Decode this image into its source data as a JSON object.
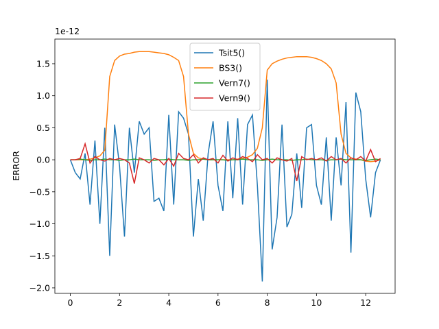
{
  "chart_data": {
    "type": "line",
    "ylabel": "ERROR",
    "offset_label": "1e-12",
    "legend": "upper center",
    "xlim": [
      -0.628,
      13.195
    ],
    "ylim": [
      -2.086,
      1.885
    ],
    "xticks": [
      0,
      2,
      4,
      6,
      8,
      10,
      12
    ],
    "yticks": [
      {
        "value": -2,
        "label": "−2.0"
      },
      {
        "value": -1.5,
        "label": "−1.5"
      },
      {
        "value": -1,
        "label": "−1.0"
      },
      {
        "value": -0.5,
        "label": "−0.5"
      },
      {
        "value": 0,
        "label": "0.0"
      },
      {
        "value": 0.5,
        "label": "0.5"
      },
      {
        "value": 1,
        "label": "1.0"
      },
      {
        "value": 1.5,
        "label": "1.5"
      }
    ],
    "x": [
      0,
      0.2,
      0.4,
      0.6,
      0.8,
      1.0,
      1.2,
      1.4,
      1.6,
      1.8,
      2.0,
      2.2,
      2.4,
      2.6,
      2.8,
      3.0,
      3.2,
      3.4,
      3.6,
      3.8,
      4.0,
      4.2,
      4.4,
      4.6,
      4.8,
      5.0,
      5.2,
      5.4,
      5.6,
      5.8,
      6.0,
      6.2,
      6.4,
      6.6,
      6.8,
      7.0,
      7.2,
      7.4,
      7.6,
      7.8,
      8.0,
      8.2,
      8.4,
      8.6,
      8.8,
      9.0,
      9.2,
      9.4,
      9.6,
      9.8,
      10.0,
      10.2,
      10.4,
      10.6,
      10.8,
      11.0,
      11.2,
      11.4,
      11.6,
      11.8,
      12.0,
      12.2,
      12.4,
      12.6
    ],
    "series": [
      {
        "name": "Tsit5()",
        "color": "#1f77b4",
        "values": [
          0,
          -0.2,
          -0.3,
          0.1,
          -0.7,
          0.3,
          -1.0,
          0.5,
          -1.5,
          0.55,
          -0.1,
          -1.2,
          0.5,
          -0.2,
          0.6,
          0.4,
          0.5,
          -0.65,
          -0.6,
          -0.8,
          0.7,
          -0.7,
          0.75,
          0.65,
          0.4,
          -1.2,
          -0.3,
          -0.95,
          0.1,
          0.6,
          -0.4,
          -0.8,
          0.6,
          -0.6,
          0.65,
          -0.7,
          0.55,
          0.7,
          -0.4,
          -1.9,
          1.25,
          -1.4,
          -0.9,
          0.55,
          -1.05,
          -0.85,
          0.1,
          -0.75,
          0.5,
          0.55,
          -0.4,
          -0.7,
          0.35,
          -0.95,
          0.35,
          -0.4,
          0.9,
          -1.45,
          1.05,
          0.75,
          -0.3,
          -0.9,
          -0.2,
          0
        ]
      },
      {
        "name": "BS3()",
        "color": "#ff7f0e",
        "values": [
          0,
          0,
          0,
          0,
          0.01,
          0.03,
          0.06,
          0.15,
          1.3,
          1.55,
          1.62,
          1.65,
          1.66,
          1.68,
          1.69,
          1.69,
          1.69,
          1.68,
          1.67,
          1.66,
          1.64,
          1.6,
          1.55,
          1.3,
          0.4,
          0.1,
          0.03,
          0.01,
          0,
          0,
          0,
          0,
          0,
          0,
          0.01,
          0.02,
          0.04,
          0.08,
          0.18,
          0.5,
          1.4,
          1.5,
          1.54,
          1.57,
          1.59,
          1.6,
          1.61,
          1.61,
          1.61,
          1.6,
          1.58,
          1.55,
          1.5,
          1.42,
          1.2,
          0.4,
          0.1,
          0.03,
          0.01,
          0,
          -0.02,
          -0.03,
          -0.02,
          0
        ]
      },
      {
        "name": "Vern7()",
        "color": "#2ca02c",
        "values": [
          0,
          0,
          0.01,
          0,
          -0.01,
          0,
          0,
          0.01,
          0,
          0,
          -0.01,
          0,
          0,
          0.01,
          0,
          0,
          0,
          -0.01,
          0,
          0,
          0.01,
          0,
          0,
          0,
          -0.01,
          0,
          0,
          0.01,
          0,
          0,
          0,
          0,
          -0.01,
          0,
          0,
          0.01,
          0,
          0,
          0,
          -0.01,
          0,
          0.01,
          0,
          0,
          0,
          -0.01,
          0,
          0,
          0.01,
          0,
          0,
          0,
          -0.01,
          0,
          0,
          0.01,
          0,
          0,
          0,
          0,
          -0.01,
          0,
          0.01,
          0
        ]
      },
      {
        "name": "Vern9()",
        "color": "#d62728",
        "values": [
          0,
          0,
          0.02,
          0.25,
          -0.05,
          0.05,
          0,
          -0.02,
          0.02,
          0,
          0.02,
          0,
          -0.05,
          -0.37,
          0.03,
          0,
          -0.05,
          0.02,
          0,
          -0.08,
          0.02,
          -0.1,
          0.1,
          0.02,
          0,
          0.08,
          -0.05,
          0.03,
          0,
          0.02,
          -0.05,
          0.07,
          -0.02,
          0.03,
          0,
          0.05,
          0.02,
          -0.03,
          0.08,
          0,
          0.02,
          -0.05,
          0.03,
          0,
          -0.02,
          0.02,
          -0.33,
          0.05,
          0,
          0.02,
          0,
          0.03,
          -0.02,
          0.05,
          0,
          0.02,
          -0.05,
          0.03,
          0,
          0.05,
          -0.02,
          0.16,
          -0.03,
          0.02
        ]
      }
    ]
  }
}
